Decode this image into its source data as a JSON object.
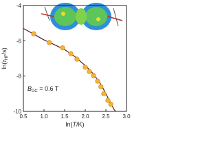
{
  "chart_data": {
    "type": "scatter",
    "x_label_parts": [
      "ln(",
      "T",
      "/K)"
    ],
    "y_label_parts": [
      "ln(",
      "τ",
      "HF",
      "/s)"
    ],
    "annotation_parts": [
      "B",
      "DC",
      " = 0.6 T"
    ],
    "xlim": [
      0.5,
      3.0
    ],
    "xticks": [
      0.5,
      {
        "value": 1,
        "label": "1.0"
      },
      1.5,
      {
        "value": 2,
        "label": "2.0"
      },
      2.5,
      {
        "value": 3,
        "label": "3.0"
      }
    ],
    "ylim": [
      -10,
      -4
    ],
    "yticks": [
      -10,
      -8,
      -6,
      -4
    ],
    "series": [
      {
        "mode": "line",
        "color": "#5a1a12",
        "x": [
          0.5,
          0.75,
          1.0,
          1.25,
          1.5,
          1.75,
          2.0,
          2.15,
          2.3,
          2.4,
          2.5,
          2.6,
          2.7,
          2.74
        ],
        "values": [
          -5.3,
          -5.62,
          -5.95,
          -6.22,
          -6.5,
          -6.9,
          -7.4,
          -7.75,
          -8.2,
          -8.55,
          -9.0,
          -9.45,
          -9.9,
          -10.0
        ]
      },
      {
        "mode": "markers",
        "color": "#f5b335",
        "x": [
          0.75,
          1.13,
          1.45,
          1.65,
          1.8,
          2.0,
          2.1,
          2.2,
          2.3,
          2.38,
          2.45,
          2.55,
          2.62
        ],
        "values": [
          -5.6,
          -6.1,
          -6.4,
          -6.73,
          -7.04,
          -7.5,
          -7.74,
          -7.97,
          -8.29,
          -8.6,
          -9.0,
          -9.38,
          -9.6
        ]
      }
    ]
  }
}
